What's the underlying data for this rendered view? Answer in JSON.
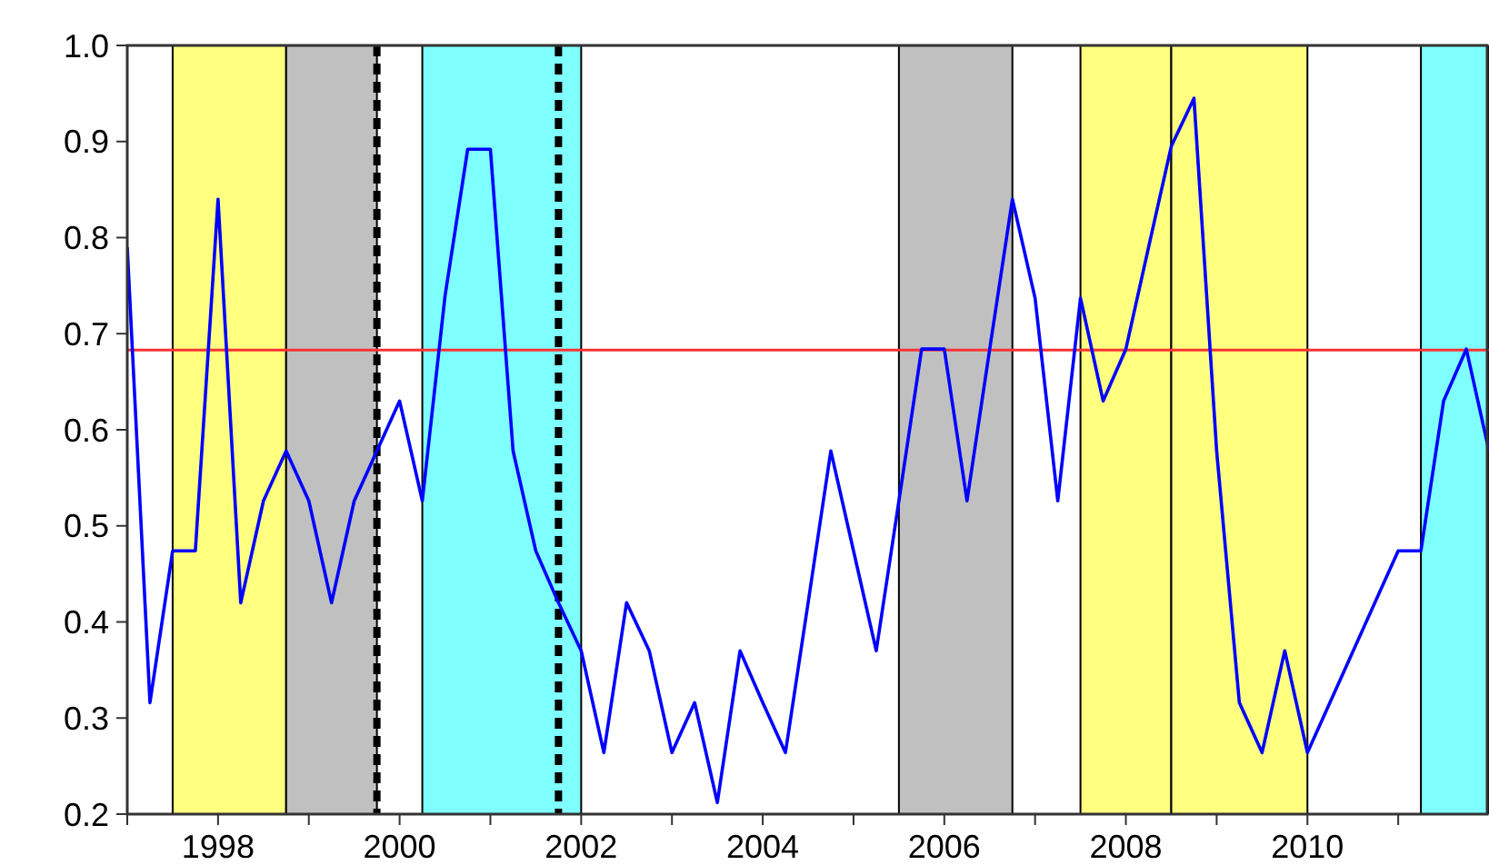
{
  "chart_data": {
    "type": "line",
    "x": [
      1997,
      1997.25,
      1997.5,
      1997.75,
      1998,
      1998.25,
      1998.5,
      1998.75,
      1999,
      1999.25,
      1999.5,
      1999.75,
      2000,
      2000.25,
      2000.5,
      2000.75,
      2001,
      2001.25,
      2001.5,
      2001.75,
      2002,
      2002.25,
      2002.5,
      2002.75,
      2003,
      2003.25,
      2003.5,
      2003.75,
      2004,
      2004.25,
      2004.5,
      2004.75,
      2005,
      2005.25,
      2005.5,
      2005.75,
      2006,
      2006.25,
      2006.5,
      2006.75,
      2007,
      2007.25,
      2007.5,
      2007.75,
      2008,
      2008.25,
      2008.5,
      2008.75,
      2009,
      2009.25,
      2009.5,
      2009.75,
      2010,
      2011,
      2011.25,
      2011.5,
      2011.75,
      2012
    ],
    "series": [
      {
        "color": "#0000ff",
        "values": [
          0.79,
          0.316,
          0.474,
          0.474,
          0.84,
          0.42,
          0.526,
          0.578,
          0.526,
          0.42,
          0.526,
          0.578,
          0.63,
          0.526,
          0.739,
          0.892,
          0.892,
          0.578,
          0.474,
          0.42,
          0.37,
          0.264,
          0.42,
          0.37,
          0.264,
          0.316,
          0.212,
          0.37,
          0.316,
          0.264,
          0.42,
          0.578,
          0.474,
          0.37,
          0.526,
          0.684,
          0.684,
          0.526,
          0.684,
          0.84,
          0.737,
          0.526,
          0.737,
          0.63,
          0.684,
          0.79,
          0.895,
          0.945,
          0.578,
          0.316,
          0.264,
          0.37,
          0.264,
          0.474,
          0.474,
          0.63,
          0.684,
          0.578
        ]
      }
    ],
    "xlim": [
      1997,
      2012
    ],
    "xticks": [
      {
        "value": 1997,
        "label": null
      },
      {
        "value": 1998,
        "label": "1998"
      },
      {
        "value": 1999,
        "label": null
      },
      {
        "value": 2000,
        "label": "2000"
      },
      {
        "value": 2001,
        "label": null
      },
      {
        "value": 2002,
        "label": "2002"
      },
      {
        "value": 2003,
        "label": null
      },
      {
        "value": 2004,
        "label": "2004"
      },
      {
        "value": 2005,
        "label": null
      },
      {
        "value": 2006,
        "label": "2006"
      },
      {
        "value": 2007,
        "label": null
      },
      {
        "value": 2008,
        "label": "2008"
      },
      {
        "value": 2009,
        "label": null
      },
      {
        "value": 2010,
        "label": "2010"
      },
      {
        "value": 2011,
        "label": null
      }
    ],
    "ylim": [
      0.2,
      1.0
    ],
    "yticks": [
      {
        "value": 0.2,
        "label": "0.2"
      },
      {
        "value": 0.3,
        "label": "0.3"
      },
      {
        "value": 0.4,
        "label": "0.4"
      },
      {
        "value": 0.5,
        "label": "0.5"
      },
      {
        "value": 0.6,
        "label": "0.6"
      },
      {
        "value": 0.7,
        "label": "0.7"
      },
      {
        "value": 0.8,
        "label": "0.8"
      },
      {
        "value": 0.9,
        "label": "0.9"
      },
      {
        "value": 1.0,
        "label": "1.0"
      }
    ],
    "bands": [
      {
        "axis": "x",
        "from": 1997.5,
        "to": 1998.75,
        "color": "#ffff80"
      },
      {
        "axis": "x",
        "from": 1998.75,
        "to": 1999.75,
        "color": "#c0c0c0"
      },
      {
        "axis": "x",
        "from": 2000.25,
        "to": 2002,
        "color": "#80ffff"
      },
      {
        "axis": "x",
        "from": 2005.5,
        "to": 2006.75,
        "color": "#c0c0c0"
      },
      {
        "axis": "x",
        "from": 2007.5,
        "to": 2008.5,
        "color": "#ffff80"
      },
      {
        "axis": "x",
        "from": 2008.5,
        "to": 2010,
        "color": "#ffff80"
      },
      {
        "axis": "x",
        "from": 2011.25,
        "to": 2012,
        "color": "#80ffff"
      }
    ],
    "ref_lines": [
      {
        "axis": "y",
        "value": 0.683,
        "color": "#ff3333",
        "line_style": "solid"
      },
      {
        "axis": "x",
        "value": 1999.75,
        "color": "#000000",
        "line_style": "dashed"
      },
      {
        "axis": "x",
        "value": 2001.75,
        "color": "#000000",
        "line_style": "dashed"
      }
    ]
  }
}
